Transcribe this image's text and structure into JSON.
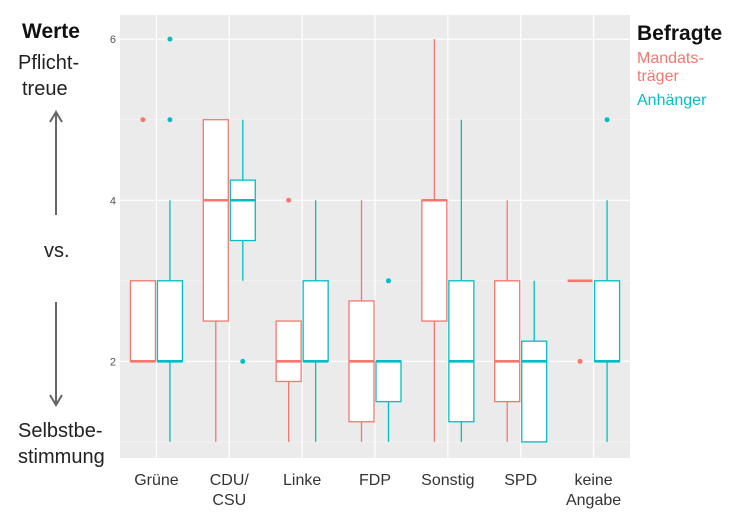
{
  "left_annotation": {
    "title": "Werte",
    "top_line1": "Pflicht-",
    "top_line2": "treue",
    "middle": "vs.",
    "bottom_line1": "Selbstbe-",
    "bottom_line2": "stimmung"
  },
  "legend": {
    "title": "Befragte",
    "entries": [
      {
        "line1": "Mandats-",
        "line2": "träger",
        "color": "#f8766d"
      },
      {
        "line1": "Anhänger",
        "line2": "",
        "color": "#00bfc4"
      }
    ]
  },
  "chart_data": {
    "type": "boxplot",
    "categories": [
      {
        "line1": "Grüne",
        "line2": ""
      },
      {
        "line1": "CDU/",
        "line2": "CSU"
      },
      {
        "line1": "Linke",
        "line2": ""
      },
      {
        "line1": "FDP",
        "line2": ""
      },
      {
        "line1": "Sonstig",
        "line2": ""
      },
      {
        "line1": "SPD",
        "line2": ""
      },
      {
        "line1": "keine",
        "line2": "Angabe"
      }
    ],
    "ylim": [
      0.8,
      6.3
    ],
    "yticks": [
      2,
      4,
      6
    ],
    "grid": true,
    "legend_position": "right",
    "series": [
      {
        "color": "#f8766d",
        "boxes": [
          {
            "min": 2,
            "q1": 2,
            "median": 2,
            "q3": 3,
            "max": 3,
            "outliers": [
              5
            ]
          },
          {
            "min": 1,
            "q1": 2.5,
            "median": 4,
            "q3": 5,
            "max": 5,
            "outliers": []
          },
          {
            "min": 1,
            "q1": 1.75,
            "median": 2,
            "q3": 2.5,
            "max": 2.5,
            "outliers": [
              4
            ]
          },
          {
            "min": 1,
            "q1": 1.25,
            "median": 2,
            "q3": 2.75,
            "max": 4,
            "outliers": []
          },
          {
            "min": 1,
            "q1": 2.5,
            "median": 4,
            "q3": 4,
            "max": 6,
            "outliers": []
          },
          {
            "min": 1,
            "q1": 1.5,
            "median": 2,
            "q3": 3,
            "max": 4,
            "outliers": []
          },
          {
            "min": 3,
            "q1": 3,
            "median": 3,
            "q3": 3,
            "max": 3,
            "outliers": [
              2
            ]
          }
        ]
      },
      {
        "color": "#00bfc4",
        "boxes": [
          {
            "min": 1,
            "q1": 2,
            "median": 2,
            "q3": 3,
            "max": 4,
            "outliers": [
              5,
              6
            ]
          },
          {
            "min": 3,
            "q1": 3.5,
            "median": 4,
            "q3": 4.25,
            "max": 5,
            "outliers": [
              2
            ]
          },
          {
            "min": 1,
            "q1": 2,
            "median": 2,
            "q3": 3,
            "max": 4,
            "outliers": []
          },
          {
            "min": 1,
            "q1": 1.5,
            "median": 2,
            "q3": 2,
            "max": 2,
            "outliers": [
              3
            ]
          },
          {
            "min": 1,
            "q1": 1.25,
            "median": 2,
            "q3": 3,
            "max": 5,
            "outliers": []
          },
          {
            "min": 1,
            "q1": 1,
            "median": 2,
            "q3": 2.25,
            "max": 3,
            "outliers": []
          },
          {
            "min": 1,
            "q1": 2,
            "median": 2,
            "q3": 3,
            "max": 4,
            "outliers": [
              5
            ]
          }
        ]
      }
    ]
  }
}
